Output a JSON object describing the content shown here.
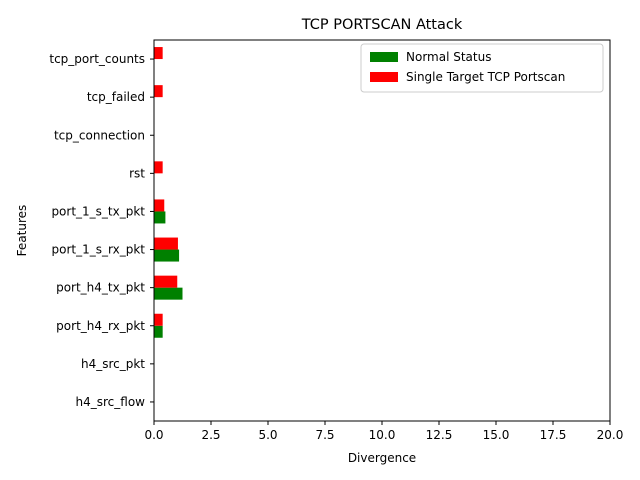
{
  "chart_data": {
    "type": "bar",
    "orientation": "horizontal",
    "title": "TCP PORTSCAN Attack",
    "xlabel": "Divergence",
    "ylabel": "Features",
    "xlim": [
      0,
      20
    ],
    "x_ticks": [
      "0.0",
      "2.5",
      "5.0",
      "7.5",
      "10.0",
      "12.5",
      "15.0",
      "17.5",
      "20.0"
    ],
    "x_tick_values": [
      0,
      2.5,
      5,
      7.5,
      10,
      12.5,
      15,
      17.5,
      20
    ],
    "grid": false,
    "legend_position": "top-right",
    "categories": [
      "h4_src_flow",
      "h4_src_pkt",
      "port_h4_rx_pkt",
      "port_h4_tx_pkt",
      "port_1_s_rx_pkt",
      "port_1_s_tx_pkt",
      "rst",
      "tcp_connection",
      "tcp_failed",
      "tcp_port_counts"
    ],
    "series": [
      {
        "name": "Normal Status",
        "color": "#008000",
        "values": [
          0,
          0,
          0.38,
          1.25,
          1.1,
          0.5,
          0,
          0,
          0,
          0
        ]
      },
      {
        "name": "Single Target TCP Portscan",
        "color": "#ff0000",
        "values": [
          0,
          0,
          0.38,
          1.02,
          1.05,
          0.45,
          0.38,
          0,
          0.38,
          0.38
        ]
      }
    ]
  }
}
